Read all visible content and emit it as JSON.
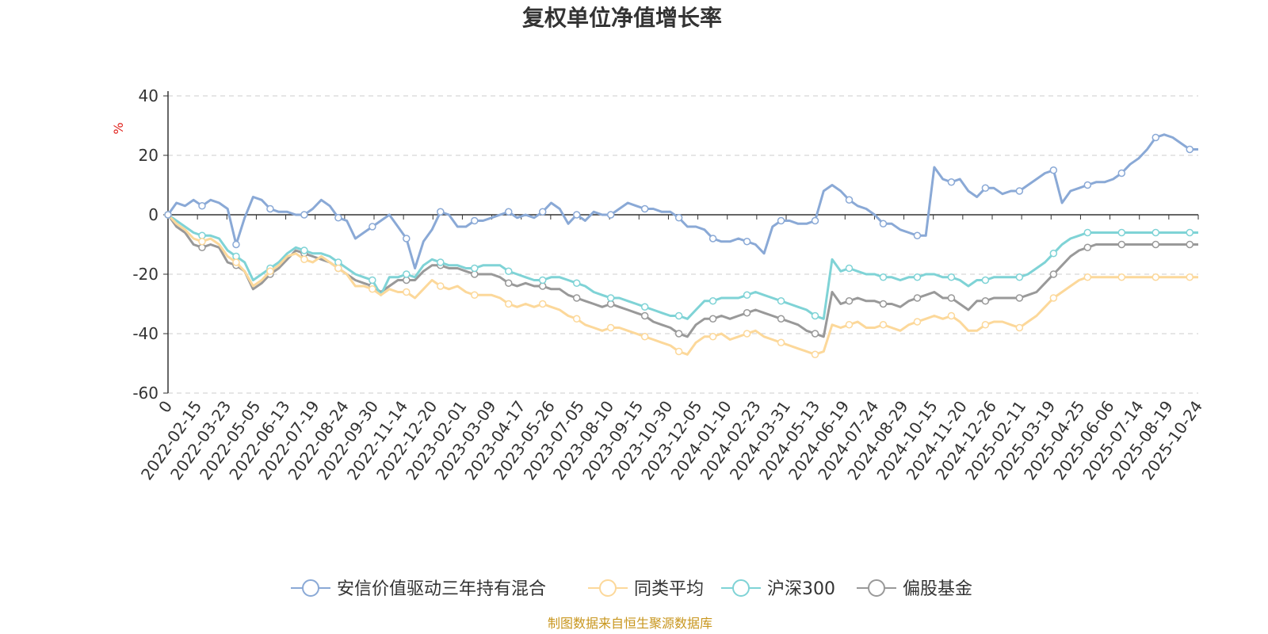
{
  "chart_data": {
    "type": "line",
    "title": "复权单位净值增长率",
    "ylabel": "%",
    "xlabel": "",
    "ylim": [
      -60,
      40
    ],
    "yticks": [
      -60,
      -40,
      -20,
      0,
      20,
      40
    ],
    "grid": true,
    "legend_position": "bottom",
    "x_tick_labels": [
      "0",
      "2022-02-15",
      "2022-03-23",
      "2022-05-05",
      "2022-06-13",
      "2022-07-19",
      "2022-08-24",
      "2022-09-30",
      "2022-11-14",
      "2022-12-20",
      "2023-02-01",
      "2023-03-09",
      "2023-04-17",
      "2023-05-26",
      "2023-07-05",
      "2023-08-10",
      "2023-09-15",
      "2023-10-30",
      "2023-12-05",
      "2024-01-10",
      "2024-02-23",
      "2024-03-31",
      "2024-05-13",
      "2024-06-19",
      "2024-07-24",
      "2024-08-29",
      "2024-10-15",
      "2024-11-20",
      "2024-12-26",
      "2025-02-11",
      "2025-03-19",
      "2025-04-25",
      "2025-06-06",
      "2025-07-14",
      "2025-08-19",
      "2025-10-24"
    ],
    "series": [
      {
        "name": "安信价值驱动三年持有混合",
        "color": "#8aa9d6",
        "values": [
          0,
          4,
          3,
          5,
          3,
          5,
          4,
          2,
          -10,
          -1,
          6,
          5,
          2,
          1,
          1,
          0,
          0,
          2,
          5,
          3,
          -1,
          -2,
          -8,
          -6,
          -4,
          -2,
          0,
          -4,
          -8,
          -18,
          -9,
          -5,
          1,
          0,
          -4,
          -4,
          -2,
          -2,
          -1,
          0,
          1,
          -1,
          0,
          -1,
          1,
          4,
          2,
          -3,
          0,
          -2,
          1,
          0,
          0,
          2,
          4,
          3,
          2,
          2,
          1,
          1,
          -1,
          -4,
          -4,
          -5,
          -8,
          -9,
          -9,
          -8,
          -9,
          -10,
          -13,
          -4,
          -2,
          -2,
          -3,
          -3,
          -2,
          8,
          10,
          8,
          5,
          3,
          2,
          0,
          -3,
          -3,
          -5,
          -6,
          -7,
          -7,
          16,
          12,
          11,
          12,
          8,
          6,
          9,
          9,
          7,
          8,
          8,
          10,
          12,
          14,
          15,
          4,
          8,
          9,
          10,
          11,
          11,
          12,
          14,
          17,
          19,
          22,
          26,
          27,
          26,
          24,
          22,
          22
        ]
      },
      {
        "name": "同类平均",
        "color": "#fcd89a",
        "values": [
          0,
          -3,
          -5,
          -8,
          -9,
          -8,
          -10,
          -14,
          -16,
          -19,
          -24,
          -22,
          -19,
          -17,
          -14,
          -13,
          -15,
          -16,
          -14,
          -16,
          -18,
          -20,
          -24,
          -24,
          -25,
          -27,
          -25,
          -26,
          -26,
          -28,
          -25,
          -22,
          -24,
          -25,
          -24,
          -26,
          -27,
          -27,
          -27,
          -28,
          -30,
          -31,
          -30,
          -31,
          -30,
          -31,
          -32,
          -34,
          -35,
          -37,
          -38,
          -39,
          -38,
          -38,
          -39,
          -40,
          -41,
          -42,
          -43,
          -44,
          -46,
          -47,
          -43,
          -41,
          -41,
          -40,
          -42,
          -41,
          -40,
          -39,
          -41,
          -42,
          -43,
          -44,
          -45,
          -46,
          -47,
          -46,
          -37,
          -38,
          -37,
          -36,
          -38,
          -38,
          -37,
          -38,
          -39,
          -37,
          -36,
          -35,
          -34,
          -35,
          -34,
          -36,
          -39,
          -39,
          -37,
          -36,
          -36,
          -37,
          -38,
          -36,
          -34,
          -31,
          -28,
          -26,
          -24,
          -22,
          -21,
          -21,
          -21,
          -21,
          -21,
          -21,
          -21,
          -21,
          -21,
          -21,
          -21,
          -21,
          -21,
          -21
        ]
      },
      {
        "name": "沪深300",
        "color": "#7fd3d6",
        "values": [
          0,
          -2,
          -4,
          -6,
          -7,
          -7,
          -8,
          -12,
          -14,
          -16,
          -22,
          -20,
          -18,
          -16,
          -13,
          -11,
          -12,
          -13,
          -13,
          -14,
          -16,
          -18,
          -20,
          -21,
          -22,
          -27,
          -21,
          -21,
          -20,
          -21,
          -17,
          -15,
          -16,
          -17,
          -17,
          -18,
          -18,
          -17,
          -17,
          -17,
          -19,
          -20,
          -21,
          -22,
          -22,
          -21,
          -21,
          -22,
          -23,
          -24,
          -26,
          -27,
          -28,
          -28,
          -29,
          -30,
          -31,
          -32,
          -33,
          -34,
          -34,
          -35,
          -32,
          -29,
          -29,
          -28,
          -28,
          -28,
          -27,
          -26,
          -27,
          -28,
          -29,
          -30,
          -31,
          -32,
          -34,
          -35,
          -15,
          -19,
          -18,
          -19,
          -20,
          -20,
          -21,
          -21,
          -22,
          -21,
          -21,
          -20,
          -20,
          -21,
          -21,
          -22,
          -24,
          -22,
          -22,
          -21,
          -21,
          -21,
          -21,
          -20,
          -18,
          -16,
          -13,
          -10,
          -8,
          -7,
          -6,
          -6,
          -6,
          -6,
          -6,
          -6,
          -6,
          -6,
          -6,
          -6,
          -6,
          -6,
          -6,
          -6
        ]
      },
      {
        "name": "偏股基金",
        "color": "#999999",
        "values": [
          0,
          -4,
          -6,
          -10,
          -11,
          -10,
          -11,
          -16,
          -17,
          -19,
          -25,
          -23,
          -20,
          -18,
          -15,
          -12,
          -13,
          -14,
          -15,
          -16,
          -18,
          -20,
          -22,
          -23,
          -24,
          -26,
          -24,
          -22,
          -22,
          -22,
          -19,
          -17,
          -17,
          -18,
          -18,
          -19,
          -20,
          -20,
          -20,
          -21,
          -23,
          -24,
          -23,
          -24,
          -24,
          -25,
          -25,
          -27,
          -28,
          -29,
          -30,
          -31,
          -30,
          -31,
          -32,
          -33,
          -34,
          -36,
          -37,
          -38,
          -40,
          -41,
          -37,
          -35,
          -35,
          -34,
          -35,
          -34,
          -33,
          -32,
          -33,
          -34,
          -35,
          -36,
          -37,
          -39,
          -40,
          -41,
          -26,
          -30,
          -29,
          -28,
          -29,
          -29,
          -30,
          -30,
          -31,
          -29,
          -28,
          -27,
          -26,
          -28,
          -28,
          -30,
          -32,
          -29,
          -29,
          -28,
          -28,
          -28,
          -28,
          -27,
          -26,
          -23,
          -20,
          -17,
          -14,
          -12,
          -11,
          -10,
          -10,
          -10,
          -10,
          -10,
          -10,
          -10,
          -10,
          -10,
          -10,
          -10,
          -10,
          -10
        ]
      }
    ],
    "source": "制图数据来自恒生聚源数据库"
  }
}
